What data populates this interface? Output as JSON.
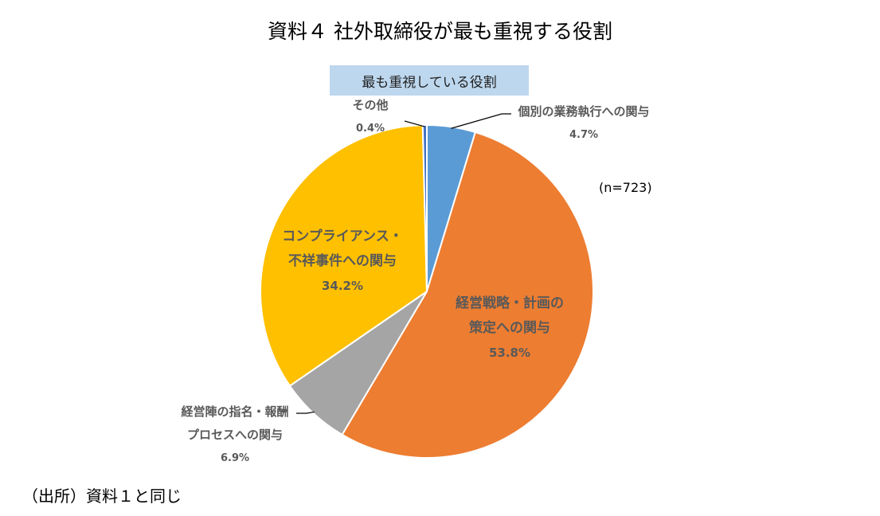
{
  "chart_data": {
    "type": "pie",
    "title": "資料４ 社外取締役が最も重視する役割",
    "legend_title": "最も重視している役割",
    "note": "(n=723)",
    "slices": [
      {
        "label_lines": [
          "個別の業務執行への関与"
        ],
        "value_text": "4.7%",
        "value": 4.7,
        "color": "#5b9bd5"
      },
      {
        "label_lines": [
          "経営戦略・計画の",
          "策定への関与"
        ],
        "value_text": "53.8%",
        "value": 53.8,
        "color": "#ed7d31"
      },
      {
        "label_lines": [
          "経営陣の指名・報酬",
          "プロセスへの関与"
        ],
        "value_text": "6.9%",
        "value": 6.9,
        "color": "#a5a5a5"
      },
      {
        "label_lines": [
          "コンプライアンス・",
          "不祥事件への関与"
        ],
        "value_text": "34.2%",
        "value": 34.2,
        "color": "#ffc000"
      },
      {
        "label_lines": [
          "その他"
        ],
        "value_text": "0.4%",
        "value": 0.4,
        "color": "#4472c4"
      }
    ]
  },
  "source": "（出所）資料１と同じ"
}
